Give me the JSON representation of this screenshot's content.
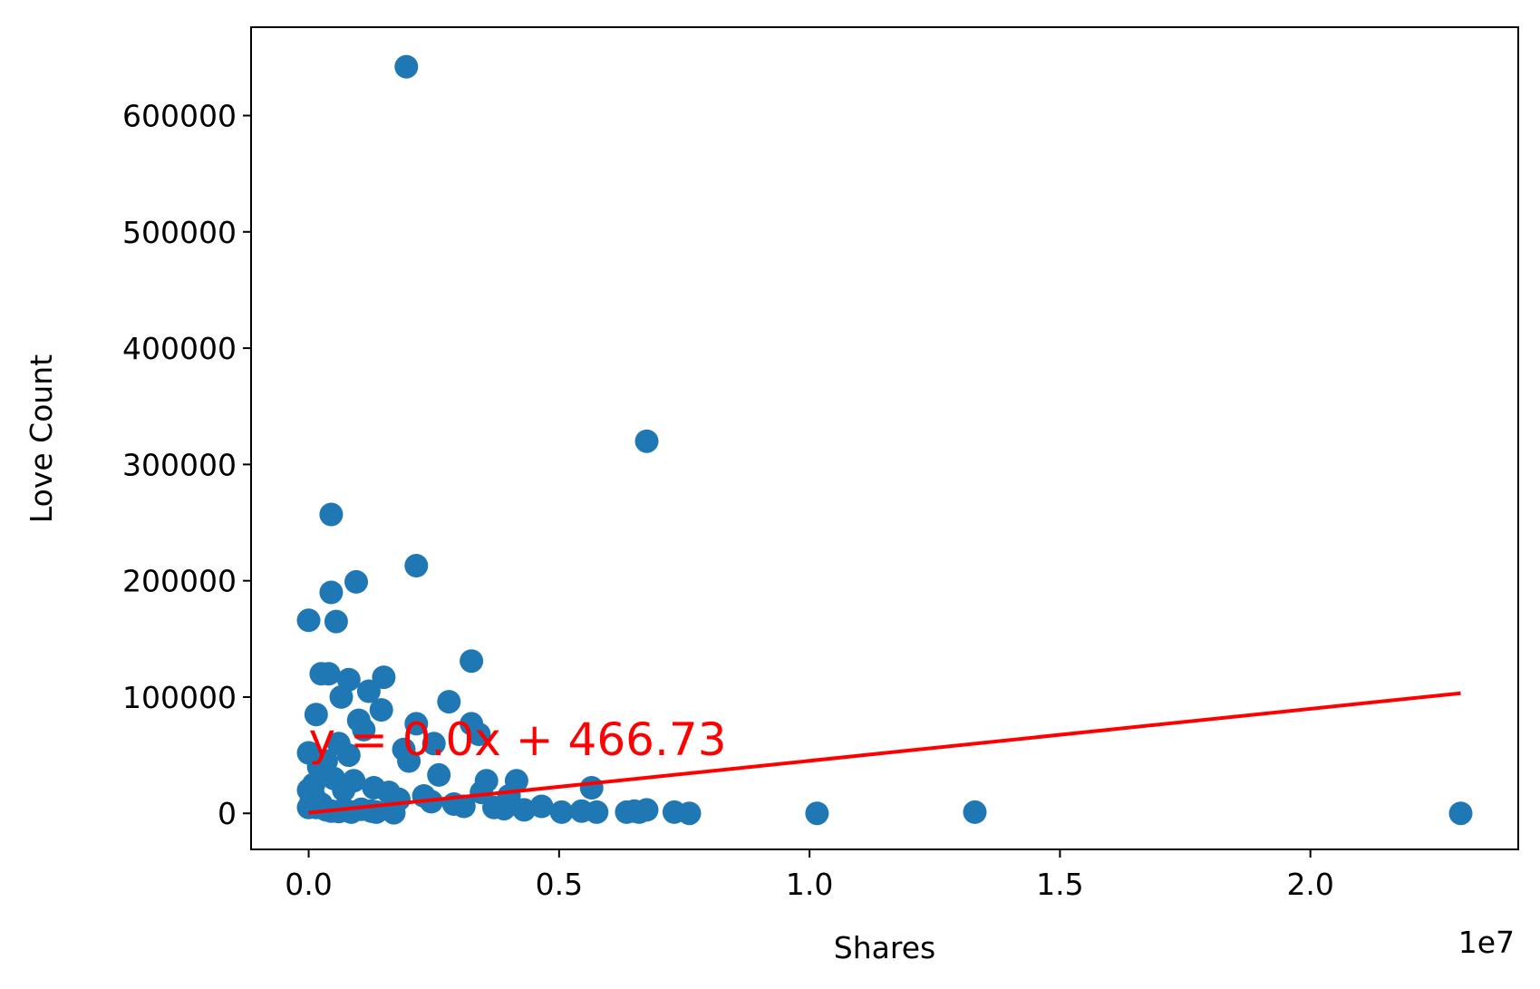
{
  "chart_data": {
    "type": "scatter",
    "xlabel": "Shares",
    "ylabel": "Love Count",
    "x_offset_text": "1e7",
    "xlim": [
      -1150000,
      24150000
    ],
    "ylim": [
      -31000,
      676000
    ],
    "x_ticks": [
      0,
      5000000,
      10000000,
      15000000,
      20000000
    ],
    "x_tick_labels": [
      "0.0",
      "0.5",
      "1.0",
      "1.5",
      "2.0"
    ],
    "y_ticks": [
      0,
      100000,
      200000,
      300000,
      400000,
      500000,
      600000
    ],
    "y_tick_labels": [
      "0",
      "100000",
      "200000",
      "300000",
      "400000",
      "500000",
      "600000"
    ],
    "grid": false,
    "point_color": "#1f77b4",
    "regression": {
      "label": "y = 0.0x + 466.73",
      "slope": 0.00447,
      "intercept": 466.73,
      "x_start": 0,
      "x_end": 23000000,
      "color": "#ff0000",
      "label_anchor": [
        0,
        50000
      ]
    },
    "series": [
      {
        "x": [
          1950000,
          6750000,
          450000,
          2150000,
          950000,
          450000,
          0,
          550000,
          3250000,
          250000,
          400000,
          800000,
          1500000,
          1200000,
          2800000,
          1450000,
          150000,
          2150000,
          3250000,
          3400000,
          0,
          650000,
          1000000,
          1100000,
          2500000,
          1900000,
          2000000,
          2600000,
          3550000,
          4150000,
          5650000,
          3450000,
          4000000,
          100000,
          200000,
          300000,
          500000,
          700000,
          900000,
          1300000,
          1600000,
          1800000,
          2300000,
          2450000,
          2900000,
          3100000,
          3700000,
          3900000,
          4300000,
          4650000,
          5050000,
          5450000,
          5750000,
          6350000,
          6500000,
          6600000,
          6750000,
          7300000,
          7600000,
          10150000,
          13300000,
          23000000,
          0,
          0,
          50000,
          100000,
          150000,
          250000,
          350000,
          450000,
          600000,
          750000,
          850000,
          1050000,
          1250000,
          1350000,
          1700000,
          600000,
          800000,
          350000
        ],
        "y": [
          642000,
          320000,
          257000,
          213000,
          199000,
          190000,
          166000,
          165000,
          131000,
          120000,
          120000,
          115000,
          117000,
          105000,
          96000,
          89000,
          85000,
          77000,
          77000,
          68000,
          52000,
          100000,
          80000,
          72000,
          60000,
          55000,
          45000,
          33000,
          28000,
          28000,
          22000,
          18000,
          15000,
          25000,
          40000,
          35000,
          30000,
          20000,
          28000,
          22000,
          18000,
          12000,
          15000,
          10000,
          8000,
          6000,
          5000,
          4000,
          3000,
          6000,
          1000,
          2000,
          1000,
          1000,
          2000,
          1000,
          3000,
          1000,
          0,
          0,
          1000,
          0,
          5000,
          20000,
          10000,
          15000,
          5000,
          8000,
          3000,
          2000,
          1500,
          2500,
          1000,
          3500,
          2000,
          1000,
          500,
          60000,
          50000,
          45000
        ]
      }
    ]
  }
}
